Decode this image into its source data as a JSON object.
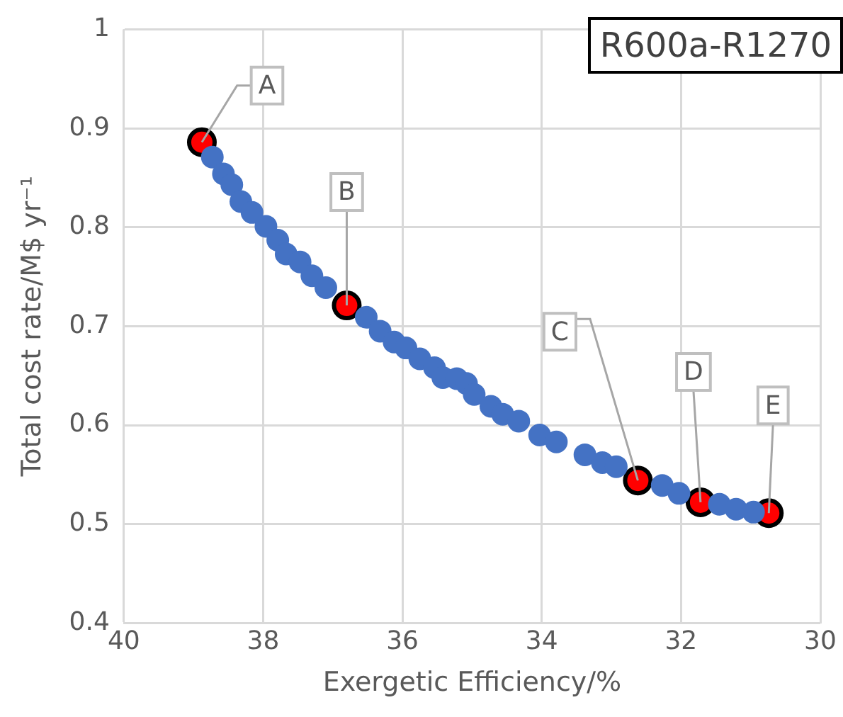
{
  "chart_data": {
    "type": "scatter",
    "title": "R600a-R1270",
    "xlabel": "Exergetic Efficiency/%",
    "ylabel": "Total cost rate/M$ yr⁻¹",
    "xlim": [
      40,
      30
    ],
    "xticks": [
      40,
      38,
      36,
      34,
      32,
      30
    ],
    "ylim": [
      0.4,
      1
    ],
    "yticks": [
      0.4,
      0.5,
      0.6,
      0.7,
      0.8,
      0.9,
      1
    ],
    "grid": true,
    "legend": false,
    "marker": "circle",
    "series": [
      {
        "color": "#4472c4",
        "x": [
          38.73,
          38.57,
          38.45,
          38.32,
          38.16,
          37.96,
          37.79,
          37.67,
          37.47,
          37.3,
          37.1,
          36.52,
          36.32,
          36.12,
          35.95,
          35.75,
          35.54,
          35.42,
          35.22,
          35.08,
          34.97,
          34.73,
          34.56,
          34.33,
          34.03,
          33.79,
          33.38,
          33.13,
          32.93,
          32.27,
          32.03,
          31.45,
          31.21,
          30.96
        ],
        "values": [
          0.871,
          0.854,
          0.843,
          0.826,
          0.815,
          0.801,
          0.787,
          0.773,
          0.765,
          0.751,
          0.739,
          0.709,
          0.695,
          0.684,
          0.678,
          0.667,
          0.658,
          0.648,
          0.647,
          0.642,
          0.631,
          0.619,
          0.611,
          0.604,
          0.59,
          0.583,
          0.57,
          0.562,
          0.558,
          0.539,
          0.531,
          0.52,
          0.515,
          0.512
        ]
      },
      {
        "color": "#ff0000",
        "x": [
          38.88,
          36.8,
          32.62,
          31.72,
          30.74
        ],
        "values": [
          0.886,
          0.721,
          0.544,
          0.522,
          0.511
        ]
      }
    ],
    "annotations": [
      {
        "text": "A",
        "x": 38.88,
        "y": 0.886
      },
      {
        "text": "B",
        "x": 36.8,
        "y": 0.721
      },
      {
        "text": "C",
        "x": 32.62,
        "y": 0.544
      },
      {
        "text": "D",
        "x": 31.72,
        "y": 0.522
      },
      {
        "text": "E",
        "x": 30.74,
        "y": 0.511
      }
    ]
  }
}
